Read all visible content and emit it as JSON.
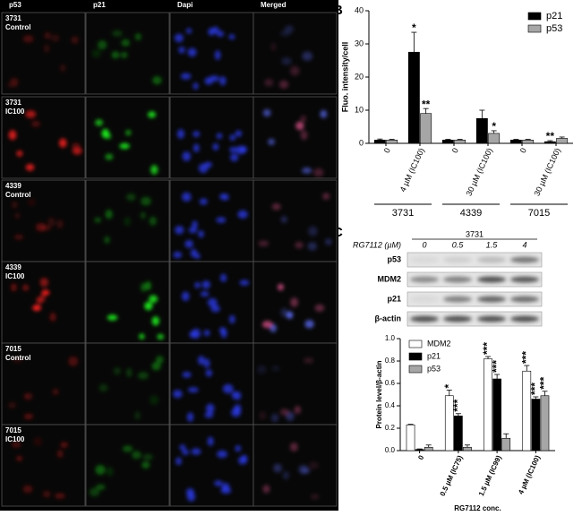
{
  "panel_a": {
    "column_headers": [
      "p53",
      "p21",
      "Dapi",
      "Merged"
    ],
    "row_labels": [
      [
        "3731",
        "Control"
      ],
      [
        "3731",
        "IC100"
      ],
      [
        "4339",
        "Control"
      ],
      [
        "4339",
        "IC100"
      ],
      [
        "7015",
        "Control"
      ],
      [
        "7015",
        "IC100"
      ]
    ]
  },
  "panel_labels": [
    "B",
    "C"
  ],
  "blot": {
    "cell_line": "3731",
    "dose_label": "RG7112 (µM)",
    "doses": [
      "0",
      "0.5",
      "1.5",
      "4"
    ],
    "proteins": [
      "p53",
      "MDM2",
      "p21",
      "β-actin"
    ]
  },
  "chart_data": [
    {
      "type": "bar",
      "y_label": "Fluo. intensity/cell",
      "categories": [
        "0",
        "4 µM (IC100)",
        "0",
        "30 µM (IC100)",
        "0",
        "30 µM (IC100)"
      ],
      "groups": [
        "3731",
        "4339",
        "7015"
      ],
      "series": [
        {
          "name": "p21",
          "color": "#000000",
          "values": [
            1,
            27.5,
            1,
            7.5,
            1,
            0.5
          ],
          "errors": [
            0.3,
            6,
            0.2,
            2.5,
            0.2,
            0.3
          ],
          "significance": [
            null,
            "*",
            null,
            null,
            null,
            "**"
          ]
        },
        {
          "name": "p53",
          "color": "#a6a6a6",
          "values": [
            1,
            9,
            1,
            3,
            1,
            1.5
          ],
          "errors": [
            0.2,
            1.5,
            0.2,
            0.8,
            0.2,
            0.4
          ],
          "significance": [
            null,
            "**",
            null,
            "*",
            null,
            null
          ]
        }
      ],
      "ylim": [
        0,
        40
      ],
      "yticks": [
        0,
        10,
        20,
        30,
        40
      ],
      "legend": "upper right"
    },
    {
      "type": "bar",
      "y_label": "Protein level/β-actin",
      "x_label": "RG7112 conc.",
      "categories": [
        "0",
        "0.5 µM (IC75)",
        "1.5 µM (IC99)",
        "4 µM (IC100)"
      ],
      "series": [
        {
          "name": "MDM2",
          "color": "#ffffff",
          "values": [
            0.23,
            0.49,
            0.82,
            0.71
          ],
          "errors": [
            0.005,
            0.05,
            0.02,
            0.05
          ],
          "significance": [
            null,
            "*",
            "***",
            "***"
          ]
        },
        {
          "name": "p21",
          "color": "#000000",
          "values": [
            0.01,
            0.31,
            0.64,
            0.46
          ],
          "errors": [
            0.005,
            0.02,
            0.04,
            0.02
          ],
          "significance": [
            null,
            "***",
            "***",
            "***"
          ]
        },
        {
          "name": "p53",
          "color": "#a6a6a6",
          "values": [
            0.03,
            0.03,
            0.11,
            0.49
          ],
          "errors": [
            0.02,
            0.02,
            0.04,
            0.04
          ],
          "significance": [
            null,
            null,
            null,
            "***"
          ]
        }
      ],
      "ylim": [
        0,
        1.0
      ],
      "yticks": [
        {
          "value": 0,
          "label": "0.0"
        },
        0.2,
        0.4,
        0.6,
        0.8,
        {
          "value": 1,
          "label": "1.0"
        }
      ],
      "legend": "upper left"
    }
  ]
}
